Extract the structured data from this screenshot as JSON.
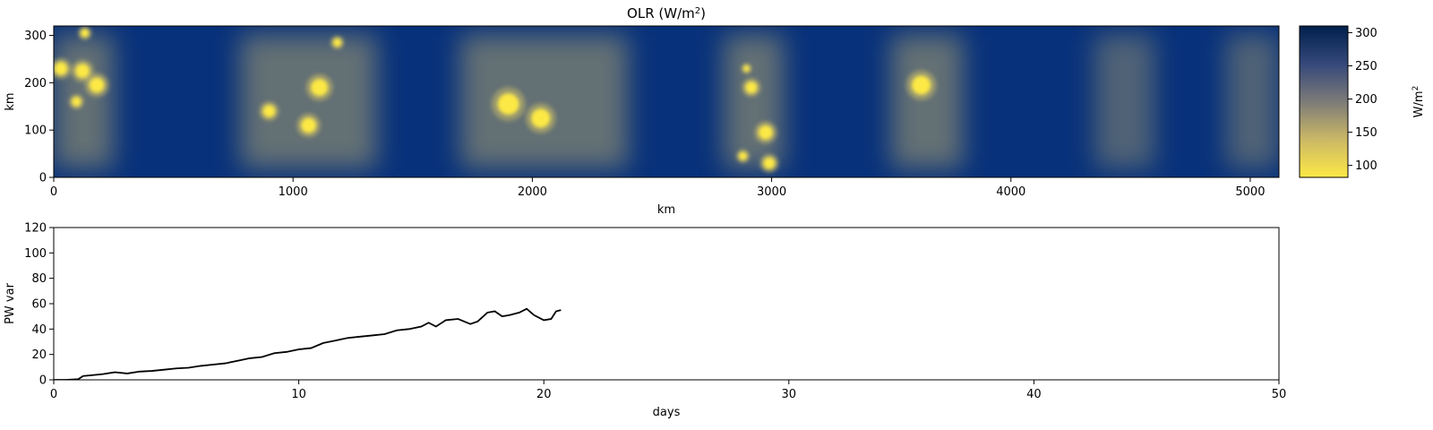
{
  "chart_data": [
    {
      "type": "heatmap",
      "title": "OLR (W/m",
      "title_sup": "2",
      "title_end": ")",
      "xlabel": "km",
      "ylabel": "km",
      "xlim": [
        0,
        5120
      ],
      "ylim": [
        0,
        320
      ],
      "xticks": [
        0,
        1000,
        2000,
        3000,
        4000,
        5000
      ],
      "yticks": [
        0,
        100,
        200,
        300
      ],
      "colormap": "cividis_r",
      "colorbar": {
        "label": "W/m",
        "label_sup": "2",
        "range": [
          82,
          310
        ],
        "ticks": [
          100,
          150,
          200,
          250,
          300
        ]
      },
      "colors": {
        "clear_sky": "#07317a",
        "mid": "#7c7b78",
        "deep_convection": "#fde945"
      },
      "convective_regions_km": [
        {
          "x_start": 0,
          "x_end": 250,
          "note": "bright cells"
        },
        {
          "x_start": 780,
          "x_end": 1350,
          "note": "bright cells"
        },
        {
          "x_start": 1700,
          "x_end": 2400,
          "note": "bright cells"
        },
        {
          "x_start": 2800,
          "x_end": 3050,
          "note": "bright cells"
        },
        {
          "x_start": 3500,
          "x_end": 3800,
          "note": "bright cells"
        },
        {
          "x_start": 4350,
          "x_end": 4600,
          "note": "diffuse cloud"
        },
        {
          "x_start": 4900,
          "x_end": 5120,
          "note": "diffuse cloud"
        }
      ],
      "bright_cells_km": [
        {
          "x": 30,
          "y": 230,
          "r": 28
        },
        {
          "x": 120,
          "y": 225,
          "r": 30
        },
        {
          "x": 180,
          "y": 195,
          "r": 32
        },
        {
          "x": 95,
          "y": 160,
          "r": 20
        },
        {
          "x": 130,
          "y": 305,
          "r": 18
        },
        {
          "x": 900,
          "y": 140,
          "r": 26
        },
        {
          "x": 1065,
          "y": 110,
          "r": 32
        },
        {
          "x": 1110,
          "y": 190,
          "r": 36
        },
        {
          "x": 1185,
          "y": 285,
          "r": 18
        },
        {
          "x": 1900,
          "y": 155,
          "r": 45
        },
        {
          "x": 2035,
          "y": 125,
          "r": 40
        },
        {
          "x": 2895,
          "y": 230,
          "r": 14
        },
        {
          "x": 2915,
          "y": 190,
          "r": 25
        },
        {
          "x": 2975,
          "y": 95,
          "r": 30
        },
        {
          "x": 2880,
          "y": 45,
          "r": 18
        },
        {
          "x": 2990,
          "y": 30,
          "r": 25
        },
        {
          "x": 3625,
          "y": 195,
          "r": 40
        }
      ]
    },
    {
      "type": "line",
      "xlabel": "days",
      "ylabel": "PW var",
      "xlim": [
        0,
        50
      ],
      "ylim": [
        0,
        120
      ],
      "xticks": [
        0,
        10,
        20,
        30,
        40,
        50
      ],
      "yticks": [
        0,
        20,
        40,
        60,
        80,
        100,
        120
      ],
      "line_color": "#000000",
      "x": [
        0,
        0.5,
        1.0,
        1.2,
        1.5,
        2.0,
        2.5,
        3.0,
        3.5,
        4.0,
        4.5,
        5.0,
        5.5,
        6.0,
        6.5,
        7.0,
        7.5,
        8.0,
        8.5,
        9.0,
        9.5,
        10.0,
        10.5,
        11.0,
        11.5,
        12.0,
        12.5,
        13.0,
        13.5,
        14.0,
        14.5,
        15.0,
        15.3,
        15.6,
        16.0,
        16.5,
        17.0,
        17.3,
        17.7,
        18.0,
        18.3,
        18.6,
        19.0,
        19.3,
        19.6,
        20.0,
        20.3,
        20.5,
        20.7
      ],
      "y": [
        0,
        0,
        0.5,
        3,
        3.5,
        4.5,
        6,
        5,
        6.5,
        7,
        8,
        9,
        9.5,
        11,
        12,
        13,
        15,
        17,
        18,
        21,
        22,
        24,
        25,
        29,
        31,
        33,
        34,
        35,
        36,
        39,
        40,
        42,
        45,
        42,
        47,
        48,
        44,
        46,
        53,
        54,
        50,
        51,
        53,
        56,
        51,
        47,
        48,
        54,
        55
      ]
    }
  ]
}
